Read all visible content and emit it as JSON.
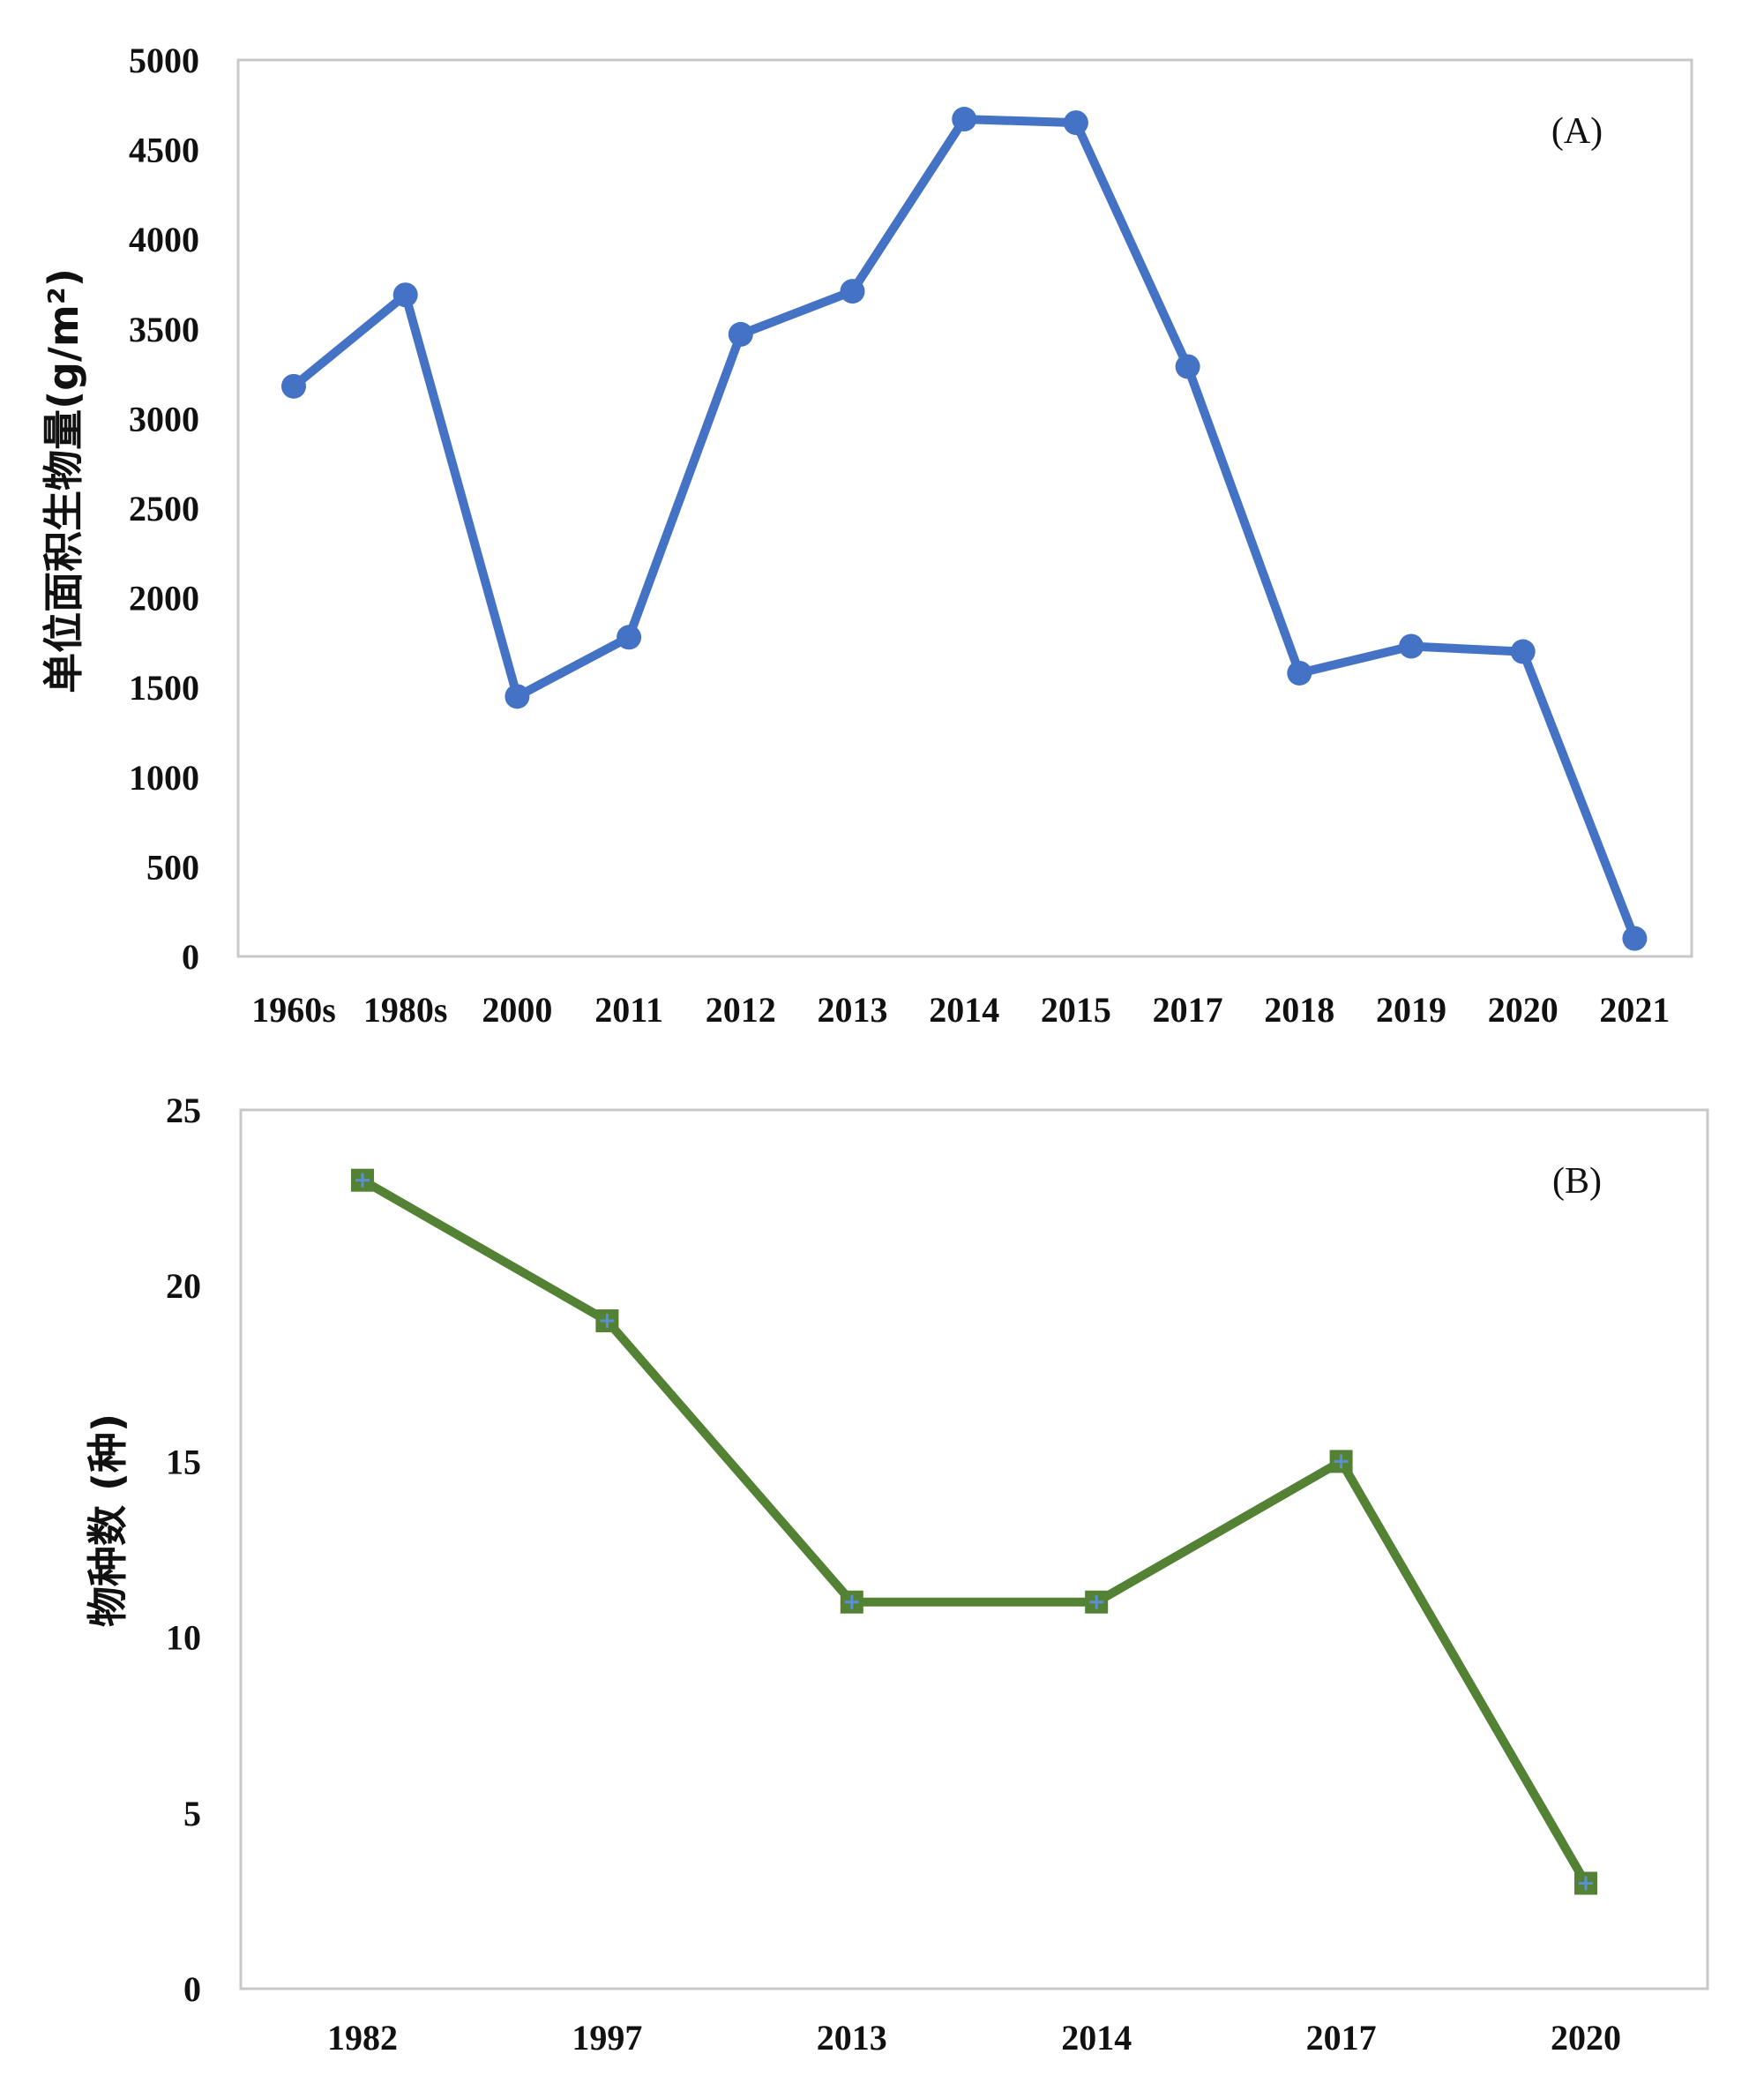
{
  "chart_data": [
    {
      "type": "line",
      "panel_label": "(A)",
      "title": "",
      "xlabel": "",
      "ylabel": "单位面积生物量(g/m²)",
      "categories": [
        "1960s",
        "1980s",
        "2000",
        "2011",
        "2012",
        "2013",
        "2014",
        "2015",
        "2017",
        "2018",
        "2019",
        "2020",
        "2021"
      ],
      "series": [
        {
          "name": "单位面积生物量",
          "color": "#4472c4",
          "marker": "circle",
          "values": [
            3180,
            3690,
            1450,
            1780,
            3470,
            3710,
            4670,
            4650,
            3290,
            1580,
            1730,
            1700,
            100
          ]
        }
      ],
      "ylim": [
        0,
        5000
      ],
      "yticks": [
        "0",
        "500",
        "1000",
        "1500",
        "2000",
        "2500",
        "3000",
        "3500",
        "4000",
        "4500",
        "5000"
      ],
      "grid": false,
      "legend": "none"
    },
    {
      "type": "line",
      "panel_label": "(B)",
      "title": "",
      "xlabel": "",
      "ylabel": "物种数 (种)",
      "categories": [
        "1982",
        "1997",
        "2013",
        "2014",
        "2017",
        "2020"
      ],
      "series": [
        {
          "name": "物种数",
          "color": "#548235",
          "marker": "square-plus",
          "values": [
            23,
            19,
            11,
            11,
            15,
            3
          ]
        }
      ],
      "ylim": [
        0,
        25
      ],
      "yticks": [
        "0",
        "5",
        "10",
        "15",
        "20",
        "25"
      ],
      "grid": false,
      "legend": "none"
    }
  ]
}
